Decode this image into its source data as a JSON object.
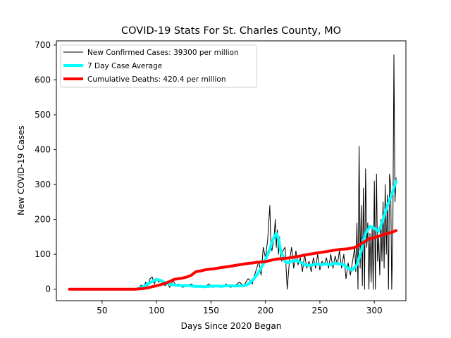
{
  "chart_data": {
    "type": "line",
    "title": "COVID-19 Stats For St. Charles County, MO",
    "xlabel": "Days Since 2020 Began",
    "ylabel": "New COVID-19 Cases",
    "xlim": [
      8,
      329
    ],
    "ylim": [
      -33,
      712
    ],
    "xticks": [
      50,
      100,
      150,
      200,
      250,
      300
    ],
    "yticks": [
      0,
      100,
      200,
      300,
      400,
      500,
      600,
      700
    ],
    "grid": false,
    "legend_position": "upper-left",
    "series": [
      {
        "name": "New Confirmed Cases: 39300 per million",
        "color": "#000000",
        "line_width": 1,
        "x": [
          20,
          30,
          40,
          50,
          60,
          70,
          80,
          84,
          86,
          88,
          90,
          92,
          94,
          96,
          98,
          100,
          102,
          104,
          106,
          108,
          110,
          112,
          115,
          118,
          120,
          124,
          128,
          132,
          136,
          140,
          144,
          148,
          152,
          156,
          160,
          164,
          168,
          172,
          176,
          180,
          184,
          186,
          188,
          190,
          192,
          194,
          196,
          198,
          200,
          202,
          204,
          205,
          206,
          208,
          209,
          210,
          211,
          212,
          213,
          214,
          215,
          216,
          218,
          220,
          222,
          224,
          226,
          228,
          230,
          232,
          234,
          236,
          238,
          240,
          242,
          244,
          246,
          248,
          250,
          252,
          254,
          256,
          258,
          260,
          262,
          264,
          266,
          268,
          270,
          272,
          274,
          276,
          278,
          280,
          282,
          283,
          284,
          285,
          286,
          287,
          288,
          289,
          290,
          291,
          292,
          293,
          294,
          295,
          296,
          297,
          298,
          299,
          300,
          301,
          302,
          303,
          304,
          305,
          306,
          307,
          308,
          309,
          310,
          311,
          312,
          313,
          314,
          315,
          316,
          317,
          318,
          319,
          320
        ],
        "y": [
          0,
          0,
          0,
          0,
          0,
          0,
          0,
          5,
          12,
          5,
          20,
          10,
          30,
          35,
          15,
          30,
          20,
          25,
          15,
          10,
          18,
          5,
          25,
          10,
          15,
          5,
          10,
          15,
          5,
          10,
          5,
          15,
          5,
          10,
          5,
          15,
          5,
          10,
          20,
          10,
          30,
          25,
          15,
          40,
          60,
          80,
          40,
          120,
          90,
          140,
          240,
          130,
          110,
          150,
          200,
          120,
          170,
          100,
          150,
          90,
          80,
          110,
          120,
          0,
          80,
          120,
          60,
          110,
          70,
          90,
          50,
          100,
          60,
          80,
          50,
          90,
          60,
          100,
          55,
          80,
          70,
          90,
          60,
          100,
          60,
          95,
          70,
          110,
          60,
          100,
          30,
          75,
          40,
          80,
          120,
          50,
          190,
          0,
          410,
          60,
          240,
          10,
          290,
          0,
          345,
          120,
          190,
          0,
          160,
          20,
          180,
          0,
          310,
          0,
          330,
          80,
          150,
          40,
          200,
          80,
          250,
          60,
          300,
          100,
          270,
          0,
          330,
          300,
          0,
          170,
          672,
          250,
          320
        ]
      },
      {
        "name": "7 Day Case Average",
        "color": "#00ffff",
        "line_width": 4,
        "x": [
          84,
          88,
          92,
          96,
          100,
          104,
          108,
          112,
          116,
          120,
          124,
          128,
          132,
          136,
          140,
          144,
          148,
          152,
          156,
          160,
          164,
          168,
          172,
          176,
          180,
          184,
          188,
          192,
          196,
          200,
          204,
          206,
          208,
          210,
          212,
          214,
          216,
          218,
          220,
          224,
          228,
          232,
          236,
          240,
          244,
          248,
          252,
          256,
          260,
          264,
          268,
          272,
          276,
          280,
          284,
          288,
          292,
          296,
          300,
          304,
          308,
          312,
          316,
          320
        ],
        "y": [
          3,
          8,
          15,
          22,
          28,
          25,
          18,
          14,
          12,
          11,
          10,
          11,
          9,
          8,
          8,
          7,
          8,
          9,
          9,
          8,
          10,
          10,
          9,
          10,
          10,
          14,
          25,
          40,
          60,
          85,
          115,
          135,
          150,
          160,
          145,
          110,
          95,
          80,
          75,
          80,
          82,
          78,
          70,
          68,
          70,
          72,
          70,
          72,
          70,
          75,
          72,
          70,
          60,
          55,
          70,
          110,
          160,
          180,
          175,
          165,
          200,
          240,
          270,
          310
        ]
      },
      {
        "name": "Cumulative Deaths: 420.4 per million",
        "color": "#ff0000",
        "line_width": 4,
        "x": [
          20,
          30,
          40,
          50,
          60,
          70,
          80,
          84,
          88,
          92,
          96,
          100,
          104,
          108,
          112,
          116,
          120,
          124,
          128,
          132,
          136,
          140,
          144,
          148,
          152,
          156,
          160,
          164,
          168,
          172,
          176,
          180,
          184,
          188,
          192,
          196,
          200,
          204,
          208,
          212,
          216,
          220,
          224,
          228,
          232,
          236,
          240,
          244,
          248,
          252,
          256,
          260,
          264,
          268,
          272,
          276,
          280,
          284,
          288,
          292,
          296,
          300,
          304,
          308,
          312,
          316,
          320
        ],
        "y": [
          0,
          0,
          0,
          0,
          0,
          0,
          0,
          1,
          2,
          4,
          7,
          10,
          13,
          17,
          22,
          28,
          30,
          32,
          35,
          40,
          50,
          52,
          55,
          57,
          58,
          60,
          62,
          64,
          66,
          68,
          70,
          72,
          74,
          75,
          77,
          78,
          79,
          82,
          85,
          87,
          88,
          89,
          91,
          93,
          95,
          98,
          100,
          102,
          104,
          106,
          108,
          110,
          112,
          114,
          115,
          116,
          118,
          122,
          130,
          138,
          145,
          148,
          152,
          156,
          160,
          163,
          168
        ]
      }
    ]
  }
}
